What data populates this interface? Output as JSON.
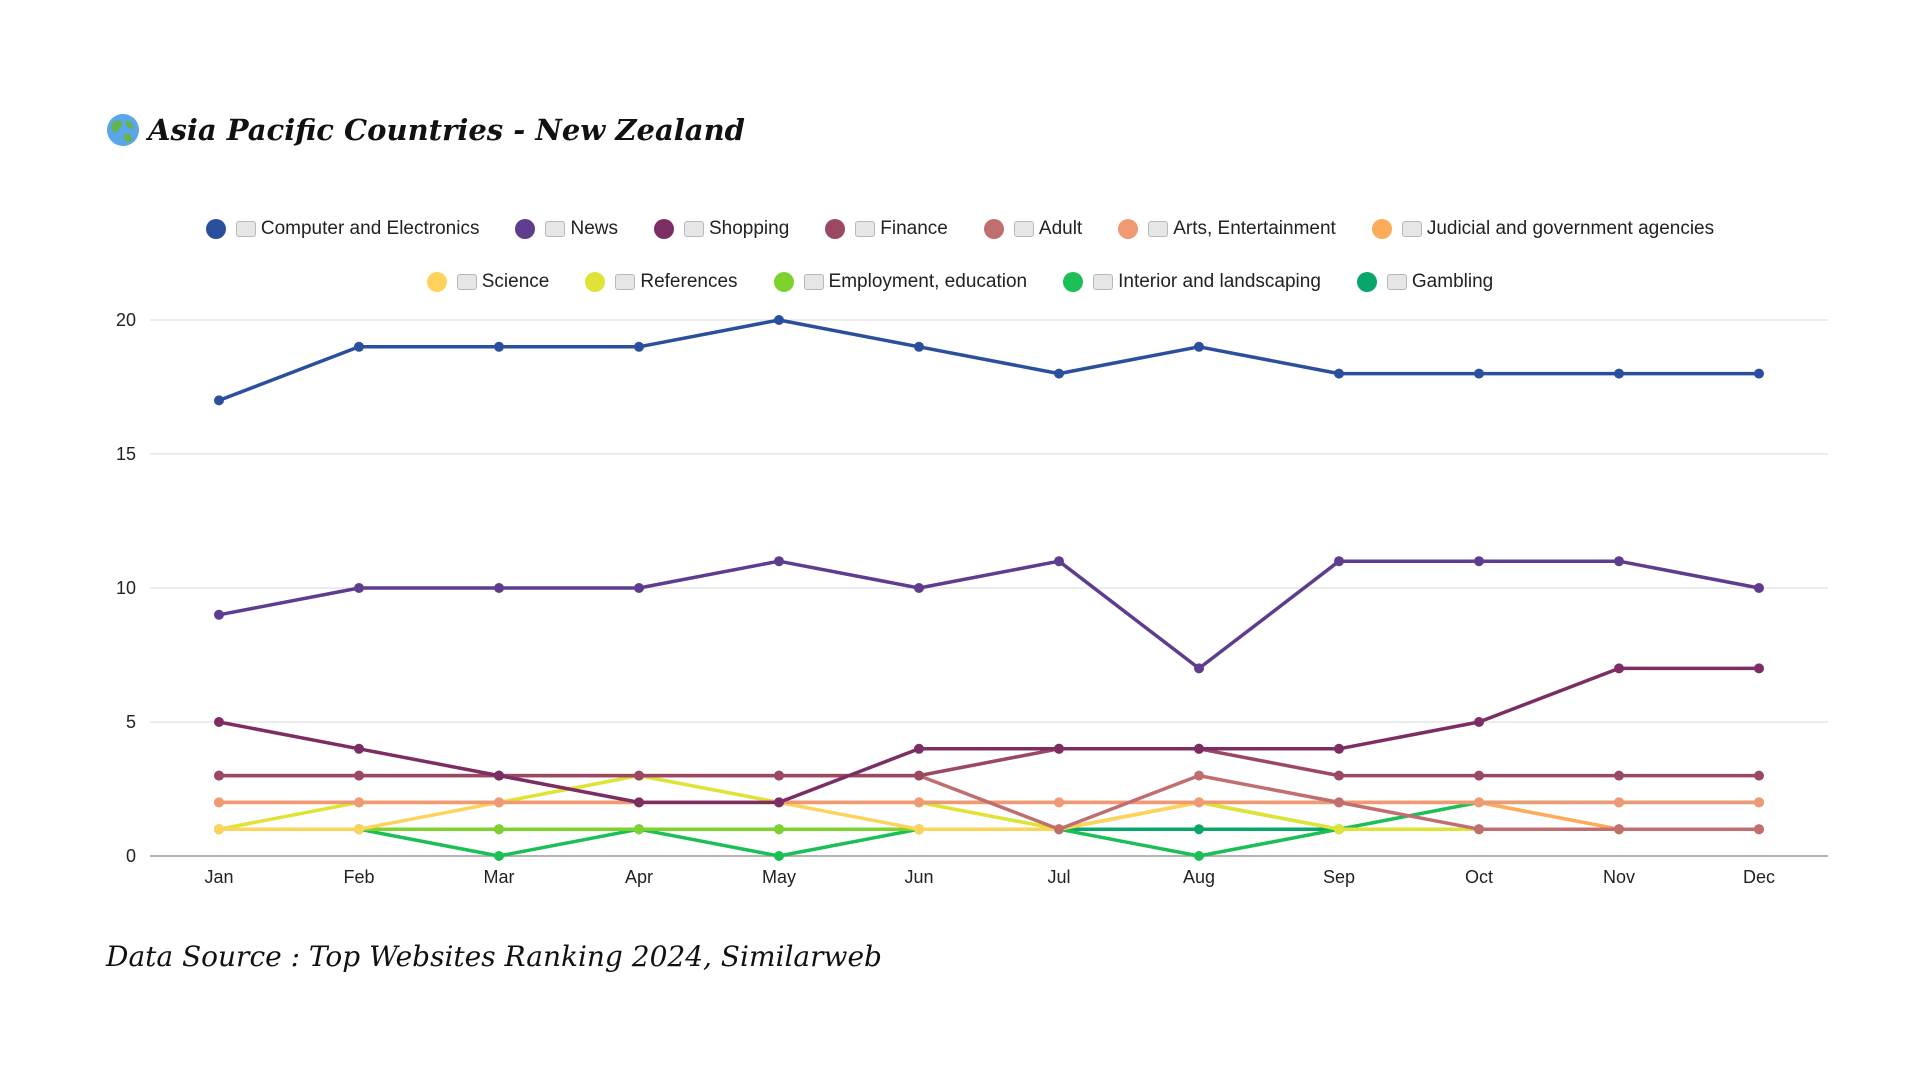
{
  "title": {
    "icon": "globe-icon",
    "text": "Asia Pacific Countries - New Zealand"
  },
  "source": "Data Source : Top Websites Ranking 2024, Similarweb",
  "chart_data": {
    "type": "line",
    "title": "Asia Pacific Countries - New Zealand",
    "xlabel": "",
    "ylabel": "",
    "categories": [
      "Jan",
      "Feb",
      "Mar",
      "Apr",
      "May",
      "Jun",
      "Jul",
      "Aug",
      "Sep",
      "Oct",
      "Nov",
      "Dec"
    ],
    "ylim": [
      0,
      20
    ],
    "yticks": [
      0,
      5,
      10,
      15,
      20
    ],
    "grid": true,
    "legend_position": "top",
    "series": [
      {
        "name": "Computer and Electronics",
        "icon": "laptop-icon",
        "color": "#2a4f9c",
        "values": [
          17,
          19,
          19,
          19,
          20,
          19,
          18,
          19,
          18,
          18,
          18,
          18
        ]
      },
      {
        "name": "News",
        "icon": "newspaper-icon",
        "color": "#5e3c8e",
        "values": [
          9,
          10,
          10,
          10,
          11,
          10,
          11,
          7,
          11,
          11,
          11,
          10
        ]
      },
      {
        "name": "Shopping",
        "icon": "cart-icon",
        "color": "#7b2d64",
        "values": [
          5,
          4,
          3,
          2,
          2,
          4,
          4,
          4,
          4,
          5,
          7,
          7
        ]
      },
      {
        "name": "Finance",
        "icon": "money-bag-icon",
        "color": "#9b4862",
        "values": [
          3,
          3,
          3,
          3,
          3,
          3,
          4,
          4,
          3,
          3,
          3,
          3
        ]
      },
      {
        "name": "Adult",
        "icon": "adult-only-icon",
        "color": "#c06e6e",
        "values": [
          3,
          3,
          3,
          3,
          3,
          3,
          1,
          3,
          2,
          1,
          1,
          1
        ]
      },
      {
        "name": "Arts, Entertainment",
        "icon": "artist-icon",
        "color": "#ef9a74",
        "values": [
          2,
          2,
          2,
          2,
          2,
          2,
          2,
          2,
          2,
          2,
          2,
          2
        ]
      },
      {
        "name": "Judicial and government agencies",
        "icon": "scales-icon",
        "color": "#fbab5a",
        "values": [
          2,
          2,
          2,
          2,
          2,
          2,
          2,
          2,
          2,
          2,
          1,
          1
        ]
      },
      {
        "name": "Science",
        "icon": "microscope-icon",
        "color": "#fdd35c",
        "values": [
          1,
          1,
          2,
          2,
          2,
          1,
          1,
          2,
          2,
          2,
          1,
          1
        ]
      },
      {
        "name": "References",
        "icon": "bookmark-icon",
        "color": "#dfe336",
        "values": [
          1,
          2,
          2,
          3,
          2,
          2,
          1,
          2,
          1,
          1,
          1,
          1
        ]
      },
      {
        "name": "Employment, education",
        "icon": "briefcase-icon",
        "color": "#7ed22f",
        "values": [
          1,
          1,
          1,
          1,
          1,
          1,
          1,
          2,
          1,
          1,
          1,
          1
        ]
      },
      {
        "name": "Interior and landscaping",
        "icon": "house-garden-icon",
        "color": "#1cbf56",
        "values": [
          1,
          1,
          0,
          1,
          0,
          1,
          1,
          0,
          1,
          2,
          2,
          2
        ]
      },
      {
        "name": "Gambling",
        "icon": "slot-machine-icon",
        "color": "#0aa56b",
        "values": [
          1,
          1,
          1,
          1,
          1,
          1,
          1,
          1,
          1,
          1,
          1,
          1
        ]
      }
    ]
  }
}
